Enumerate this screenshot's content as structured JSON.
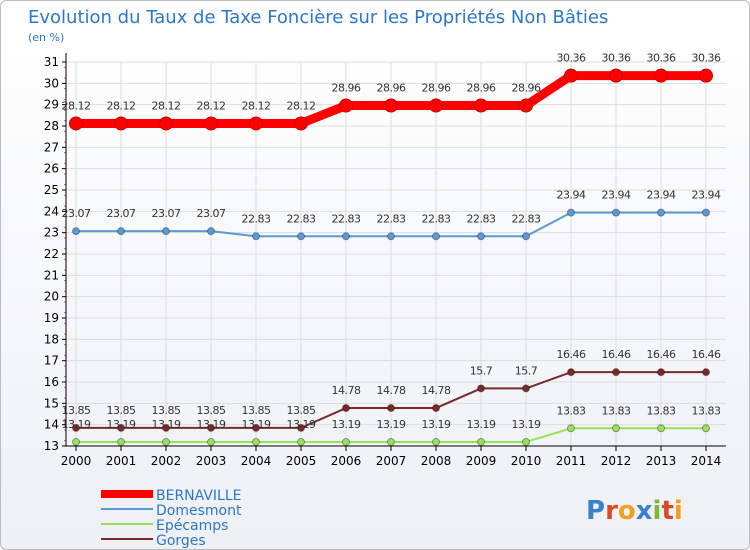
{
  "chart_data": {
    "type": "line",
    "title": "Evolution du Taux de Taxe Foncière sur les Propriétés Non Bâties",
    "ylabel": "(en %)",
    "xlabel": "",
    "ylim": [
      13,
      31
    ],
    "yticks": [
      13,
      14,
      15,
      16,
      17,
      18,
      19,
      20,
      21,
      22,
      23,
      24,
      25,
      26,
      27,
      28,
      29,
      30,
      31
    ],
    "categories": [
      "2000",
      "2001",
      "2002",
      "2003",
      "2004",
      "2005",
      "2006",
      "2007",
      "2008",
      "2009",
      "2010",
      "2011",
      "2012",
      "2013",
      "2014"
    ],
    "series": [
      {
        "name": "BERNAVILLE",
        "color": "#ff0000",
        "values": [
          28.12,
          28.12,
          28.12,
          28.12,
          28.12,
          28.12,
          28.96,
          28.96,
          28.96,
          28.96,
          28.96,
          30.36,
          30.36,
          30.36,
          30.36
        ],
        "labels": [
          "28.12",
          "28.12",
          "28.12",
          "28.12",
          "28.12",
          "28.12",
          "28.96",
          "28.96",
          "28.96",
          "28.96",
          "28.96",
          "30.36",
          "30.36",
          "30.36",
          "30.36"
        ]
      },
      {
        "name": "Domesmont",
        "color": "#5b9bd5",
        "values": [
          23.07,
          23.07,
          23.07,
          23.07,
          22.83,
          22.83,
          22.83,
          22.83,
          22.83,
          22.83,
          22.83,
          23.94,
          23.94,
          23.94,
          23.94
        ],
        "labels": [
          "23.07",
          "23.07",
          "23.07",
          "23.07",
          "22.83",
          "22.83",
          "22.83",
          "22.83",
          "22.83",
          "22.83",
          "22.83",
          "23.94",
          "23.94",
          "23.94",
          "23.94"
        ]
      },
      {
        "name": "Epécamps",
        "color": "#99e15a",
        "values": [
          13.19,
          13.19,
          13.19,
          13.19,
          13.19,
          13.19,
          13.19,
          13.19,
          13.19,
          13.19,
          13.19,
          13.83,
          13.83,
          13.83,
          13.83
        ],
        "labels": [
          "13.19",
          "13.19",
          "13.19",
          "13.19",
          "13.19",
          "13.19",
          "13.19",
          "13.19",
          "13.19",
          "13.19",
          "13.19",
          "13.83",
          "13.83",
          "13.83",
          "13.83"
        ]
      },
      {
        "name": "Gorges",
        "color": "#7b2a2a",
        "values": [
          13.85,
          13.85,
          13.85,
          13.85,
          13.85,
          13.85,
          14.78,
          14.78,
          14.78,
          15.7,
          15.7,
          16.46,
          16.46,
          16.46,
          16.46
        ],
        "labels": [
          "13.85",
          "13.85",
          "13.85",
          "13.85",
          "13.85",
          "13.85",
          "14.78",
          "14.78",
          "14.78",
          "15.7",
          "15.7",
          "16.46",
          "16.46",
          "16.46",
          "16.46"
        ]
      }
    ],
    "legend_position": "bottom-left"
  },
  "branding": {
    "logo_text": "Proxiti"
  },
  "colors": {
    "title": "#2b77c8",
    "axis": "#000000",
    "grid": "#dddddd",
    "label": "#333333"
  }
}
